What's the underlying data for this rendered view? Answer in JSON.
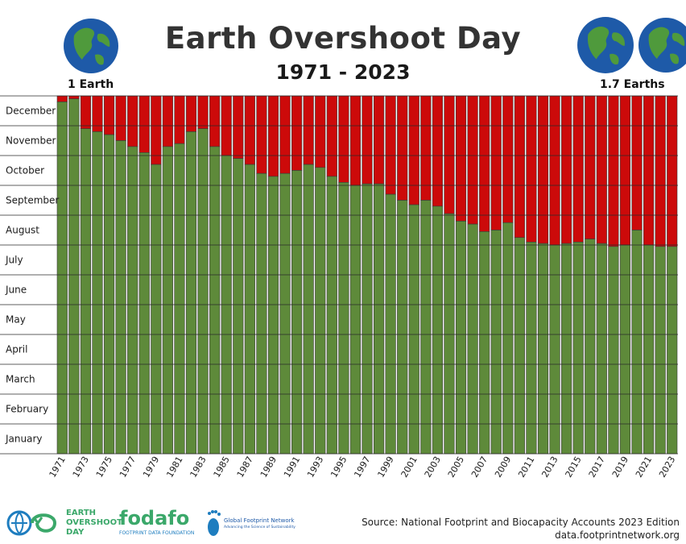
{
  "header": {
    "title": "Earth Overshoot Day",
    "subtitle": "1971 - 2023",
    "left_globe_label": "1 Earth",
    "right_globe_label": "1.7 Earths"
  },
  "footer": {
    "logo1_line1": "EARTH",
    "logo1_line2": "OVERSHOOT",
    "logo1_line3": "DAY",
    "logo2_name": "fodafo",
    "logo2_tagline": "FOOTPRINT DATA FOUNDATION",
    "logo3_name": "Global Footprint Network",
    "logo3_tagline": "Advancing the Science of Sustainability",
    "source": "Source: National Footprint and Biocapacity Accounts 2023 Edition",
    "url": "data.footprintnetwork.org"
  },
  "colors": {
    "overshoot": "#cc0a0a",
    "within_budget": "#5e8a3a",
    "bar_outline": "#3a3a3a",
    "ocean": "#1e5aa8",
    "land": "#4f9a3c",
    "logo_green": "#3ba86a",
    "logo_blue": "#1e7dbf"
  },
  "chart_data": {
    "type": "bar",
    "stacked": true,
    "title": "Earth Overshoot Day",
    "subtitle": "1971 - 2023",
    "xlabel": "",
    "ylabel": "",
    "y_unit": "month",
    "ylim": [
      0,
      12
    ],
    "y_tick_labels": [
      "January",
      "February",
      "March",
      "April",
      "May",
      "June",
      "July",
      "August",
      "September",
      "October",
      "November",
      "December"
    ],
    "x_tick_labels": [
      "1971",
      "1973",
      "1975",
      "1977",
      "1979",
      "1981",
      "1983",
      "1985",
      "1987",
      "1989",
      "1991",
      "1993",
      "1995",
      "1997",
      "1999",
      "2001",
      "2003",
      "2005",
      "2007",
      "2009",
      "2011",
      "2013",
      "2015",
      "2017",
      "2019",
      "2021",
      "2023"
    ],
    "categories": [
      "1971",
      "1972",
      "1973",
      "1974",
      "1975",
      "1976",
      "1977",
      "1978",
      "1979",
      "1980",
      "1981",
      "1982",
      "1983",
      "1984",
      "1985",
      "1986",
      "1987",
      "1988",
      "1989",
      "1990",
      "1991",
      "1992",
      "1993",
      "1994",
      "1995",
      "1996",
      "1997",
      "1998",
      "1999",
      "2000",
      "2001",
      "2002",
      "2003",
      "2004",
      "2005",
      "2006",
      "2007",
      "2008",
      "2009",
      "2010",
      "2011",
      "2012",
      "2013",
      "2014",
      "2015",
      "2016",
      "2017",
      "2018",
      "2019",
      "2020",
      "2021",
      "2022",
      "2023"
    ],
    "series": [
      {
        "values": [
          11.8,
          11.9,
          10.9,
          10.8,
          10.7,
          10.5,
          10.3,
          10.1,
          9.7,
          10.3,
          10.4,
          10.8,
          10.9,
          10.3,
          10.0,
          9.9,
          9.7,
          9.4,
          9.3,
          9.4,
          9.5,
          9.7,
          9.6,
          9.3,
          9.1,
          9.0,
          9.05,
          9.05,
          8.7,
          8.5,
          8.35,
          8.5,
          8.3,
          8.05,
          7.8,
          7.7,
          7.45,
          7.5,
          7.75,
          7.25,
          7.1,
          7.05,
          7.0,
          7.05,
          7.1,
          7.2,
          7.05,
          6.95,
          7.0,
          7.5,
          7.0,
          6.95,
          6.95
        ]
      }
    ],
    "grid": true,
    "legend": "none"
  }
}
